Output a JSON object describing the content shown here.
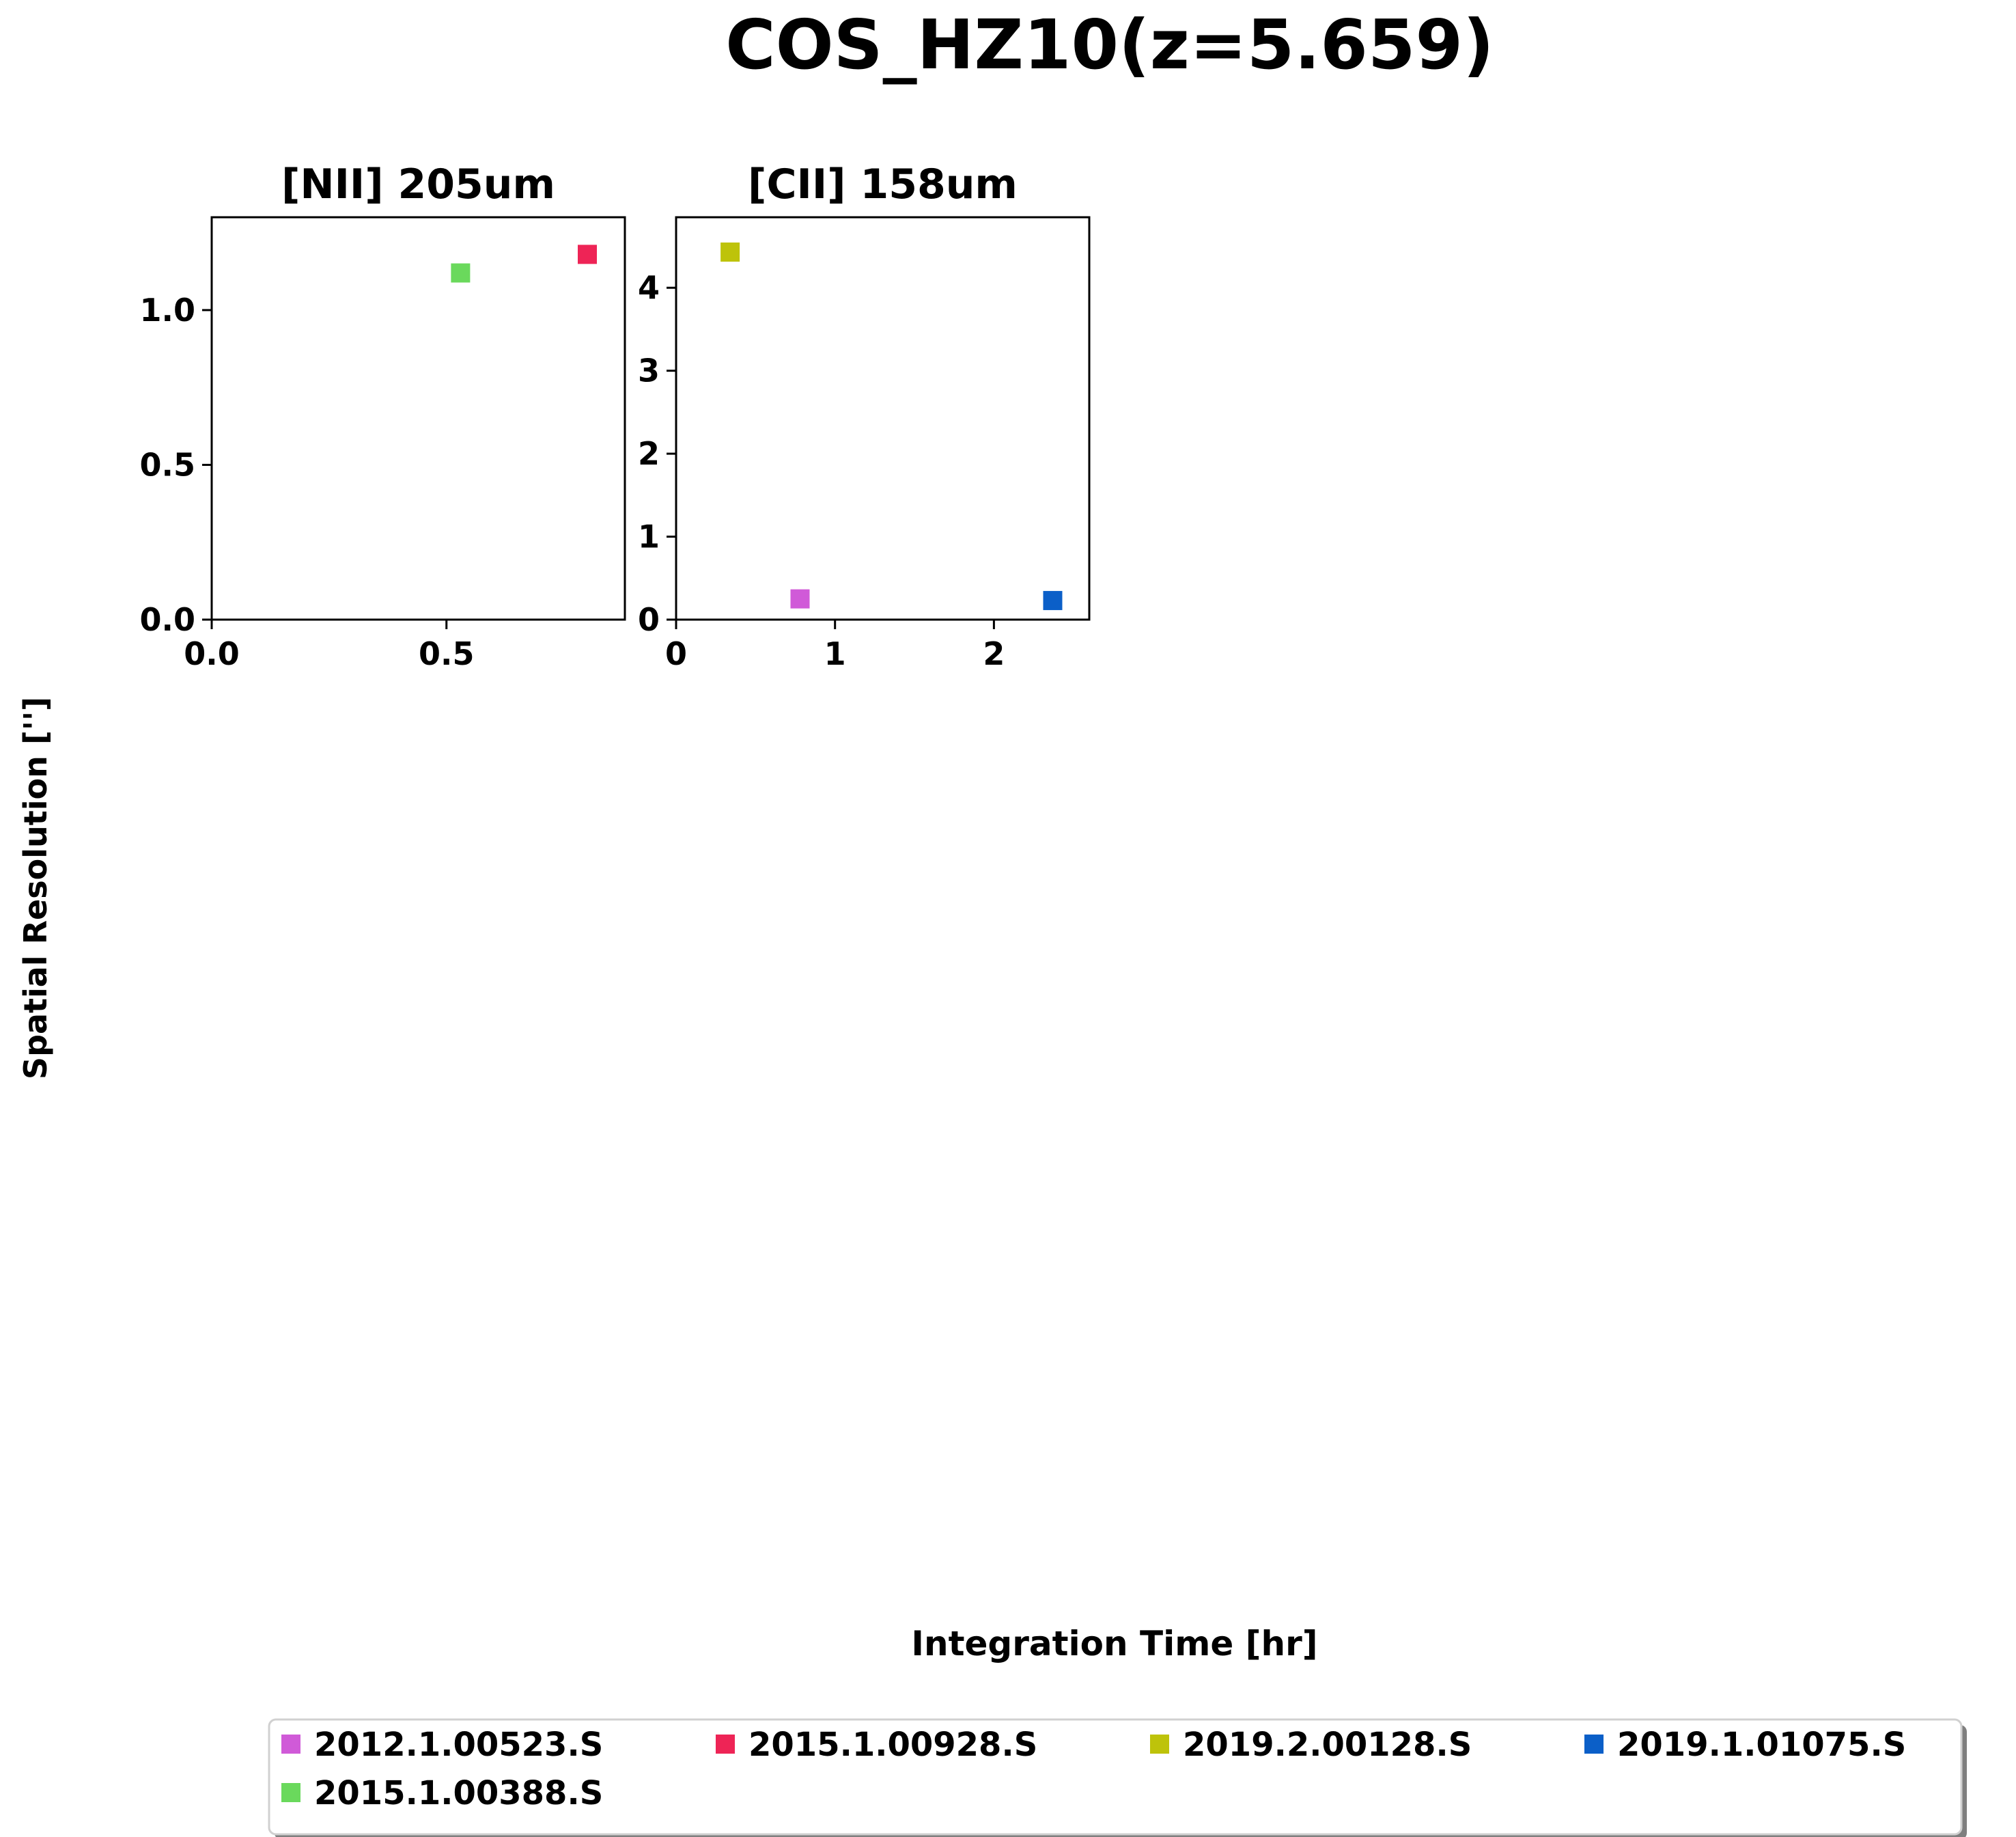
{
  "figure": {
    "title": "COS_HZ10(z=5.659)",
    "xlabel": "Integration Time [hr]",
    "ylabel": "Spatial Resolution ['']"
  },
  "legend": {
    "placement": "bottom-center",
    "entries": [
      {
        "label": "2012.1.00523.S",
        "color": "#d05ad8"
      },
      {
        "label": "2015.1.00928.S",
        "color": "#ee2456"
      },
      {
        "label": "2019.2.00128.S",
        "color": "#bec30a"
      },
      {
        "label": "2019.1.01075.S",
        "color": "#0b5fc8"
      },
      {
        "label": "2015.1.00388.S",
        "color": "#6ad95c"
      }
    ]
  },
  "chart_data": [
    {
      "type": "scatter",
      "title": "[NII] 205um",
      "xlim": [
        0,
        0.88
      ],
      "ylim": [
        0,
        1.3
      ],
      "xticks": [
        "0.0",
        "0.5"
      ],
      "xtick_values": [
        0,
        0.5
      ],
      "yticks": [
        "0.0",
        "0.5",
        "1.0"
      ],
      "ytick_values": [
        0,
        0.5,
        1.0
      ],
      "grid": false,
      "series": [
        {
          "name": "2015.1.00388.S",
          "color": "#6ad95c",
          "x": [
            0.53
          ],
          "y": [
            1.12
          ]
        },
        {
          "name": "2015.1.00928.S",
          "color": "#ee2456",
          "x": [
            0.8
          ],
          "y": [
            1.18
          ]
        }
      ]
    },
    {
      "type": "scatter",
      "title": "[CII] 158um",
      "xlim": [
        0,
        2.6
      ],
      "ylim": [
        0,
        4.85
      ],
      "xticks": [
        "0",
        "1",
        "2"
      ],
      "xtick_values": [
        0,
        1,
        2
      ],
      "yticks": [
        "0",
        "1",
        "2",
        "3",
        "4"
      ],
      "ytick_values": [
        0,
        1,
        2,
        3,
        4
      ],
      "grid": false,
      "series": [
        {
          "name": "2019.2.00128.S",
          "color": "#bec30a",
          "x": [
            0.34
          ],
          "y": [
            4.43
          ]
        },
        {
          "name": "2012.1.00523.S",
          "color": "#d05ad8",
          "x": [
            0.78
          ],
          "y": [
            0.25
          ]
        },
        {
          "name": "2019.1.01075.S",
          "color": "#0b5fc8",
          "x": [
            2.37
          ],
          "y": [
            0.23
          ]
        }
      ]
    }
  ]
}
